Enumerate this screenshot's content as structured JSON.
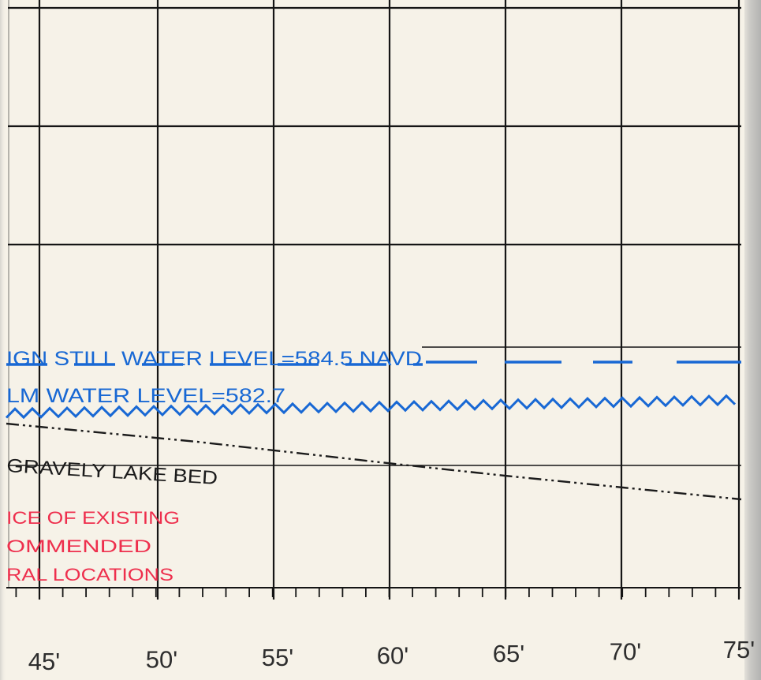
{
  "colors": {
    "paper": "#f6f2e8",
    "grid": "#151515",
    "water": "#1868d4",
    "bed": "#1b1b1b",
    "note": "#ee2f4d",
    "axis_label": "#2e2e2e"
  },
  "annotations": {
    "design_still_water_level": "IGN STILL WATER LEVEL=584.5 NAVD",
    "calm_water_level": "LM WATER LEVEL=582.7",
    "lake_bed": "GRAVELY LAKE BED",
    "notes": [
      "ICE OF EXISTING",
      "OMMENDED",
      "RAL LOCATIONS"
    ]
  },
  "axis": {
    "x_labels": [
      "45'",
      "50'",
      "55'",
      "60'",
      "65'",
      "70'",
      "75'"
    ]
  }
}
